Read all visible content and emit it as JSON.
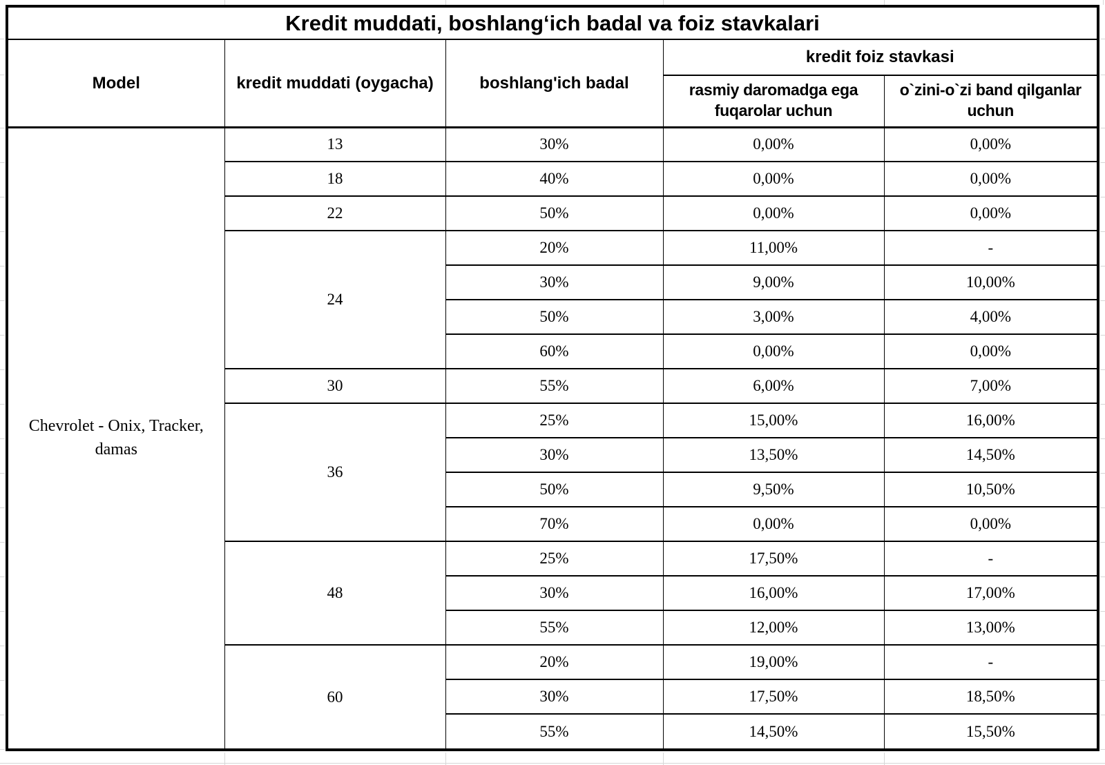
{
  "title": "Kredit muddati, boshlangʻich badal va foiz stavkalari",
  "columns": {
    "model": "Model",
    "term": "kredit muddati (oygacha)",
    "down_payment": "boshlang'ich badal",
    "rate_group": "kredit foiz stavkasi",
    "rate_official": "rasmiy daromadga ega fuqarolar uchun",
    "rate_self_employed": "o`zini-o`zi band qilganlar uchun"
  },
  "model_value": "Chevrolet - Onix, Tracker, damas",
  "table": {
    "groups": [
      {
        "term": "13",
        "rows": [
          [
            "30%",
            "0,00%",
            "0,00%"
          ]
        ]
      },
      {
        "term": "18",
        "rows": [
          [
            "40%",
            "0,00%",
            "0,00%"
          ]
        ]
      },
      {
        "term": "22",
        "rows": [
          [
            "50%",
            "0,00%",
            "0,00%"
          ]
        ]
      },
      {
        "term": "24",
        "rows": [
          [
            "20%",
            "11,00%",
            "-"
          ],
          [
            "30%",
            "9,00%",
            "10,00%"
          ],
          [
            "50%",
            "3,00%",
            "4,00%"
          ],
          [
            "60%",
            "0,00%",
            "0,00%"
          ]
        ]
      },
      {
        "term": "30",
        "rows": [
          [
            "55%",
            "6,00%",
            "7,00%"
          ]
        ]
      },
      {
        "term": "36",
        "rows": [
          [
            "25%",
            "15,00%",
            "16,00%"
          ],
          [
            "30%",
            "13,50%",
            "14,50%"
          ],
          [
            "50%",
            "9,50%",
            "10,50%"
          ],
          [
            "70%",
            "0,00%",
            "0,00%"
          ]
        ]
      },
      {
        "term": "48",
        "rows": [
          [
            "25%",
            "17,50%",
            "-"
          ],
          [
            "30%",
            "16,00%",
            "17,00%"
          ],
          [
            "55%",
            "12,00%",
            "13,00%"
          ]
        ]
      },
      {
        "term": "60",
        "rows": [
          [
            "20%",
            "19,00%",
            "-"
          ],
          [
            "30%",
            "17,50%",
            "18,50%"
          ],
          [
            "55%",
            "14,50%",
            "15,50%"
          ]
        ]
      }
    ]
  },
  "colors": {
    "background": "#ffffff",
    "text": "#000000",
    "border": "#000000",
    "grid_stub": "#d6d6d6"
  }
}
